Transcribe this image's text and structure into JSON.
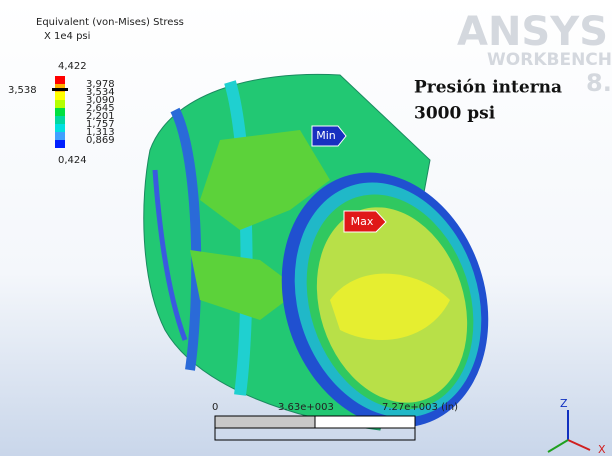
{
  "legend": {
    "title": "Equivalent (von-Mises) Stress",
    "unit": "X 1e4 psi",
    "levels": [
      "4,422",
      "3,978",
      "3,534",
      "3,090",
      "2,645",
      "2,201",
      "1,757",
      "1,313",
      "0,869",
      "0,424"
    ],
    "probe": "3,538"
  },
  "annotations": {
    "min": "Min",
    "max": "Max",
    "note": [
      "Presión interna",
      "3000 psi"
    ]
  },
  "logo": {
    "name": "ANSYS",
    "product": "WORKBENCH",
    "version": "8."
  },
  "scale_bar": {
    "labels": [
      "0",
      "3.63e+003",
      "7.27e+003 (in)"
    ]
  },
  "triad": {
    "z": "Z",
    "x": "X"
  }
}
